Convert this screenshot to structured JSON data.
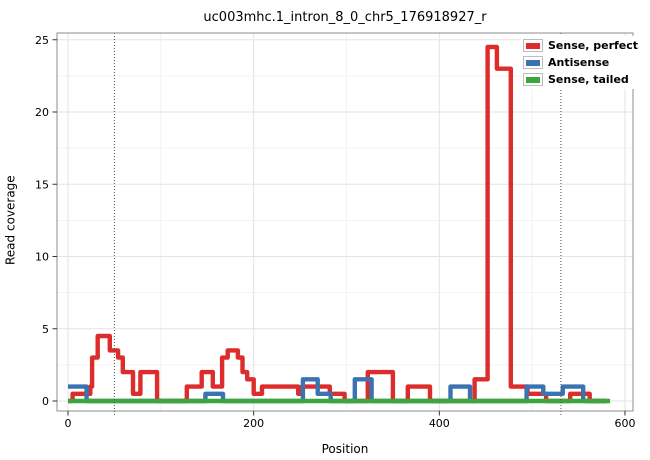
{
  "chart_data": {
    "type": "line",
    "subtype": "step-coverage",
    "title": "uc003mhc.1_intron_8_0_chr5_176918927_r",
    "xlabel": "Position",
    "ylabel": "Read coverage",
    "xlim": [
      -15,
      618
    ],
    "ylim": [
      -1,
      25.6
    ],
    "x_major_ticks": [
      0,
      200,
      400,
      600
    ],
    "x_minor_ticks": [
      100,
      300,
      500
    ],
    "y_major_ticks": [
      0,
      5,
      10,
      15,
      20,
      25
    ],
    "y_minor_ticks": [
      2.5,
      7.5,
      12.5,
      17.5,
      22.5
    ],
    "grid": "major+minor",
    "legend_position": "top-right",
    "dotted_vlines": [
      50,
      531
    ],
    "series": [
      {
        "name": "Sense, perfect",
        "color": "#DD2C2C",
        "steps": [
          [
            0,
            0
          ],
          [
            5,
            0.5
          ],
          [
            24,
            1
          ],
          [
            26,
            3
          ],
          [
            32,
            4.5
          ],
          [
            45,
            3.5
          ],
          [
            54,
            3
          ],
          [
            59,
            2
          ],
          [
            70,
            0.5
          ],
          [
            78,
            2
          ],
          [
            96,
            0
          ],
          [
            128,
            1
          ],
          [
            144,
            2
          ],
          [
            156,
            1
          ],
          [
            166,
            3
          ],
          [
            172,
            3.5
          ],
          [
            183,
            3
          ],
          [
            188,
            2
          ],
          [
            193,
            1.5
          ],
          [
            200,
            0.5
          ],
          [
            209,
            1
          ],
          [
            248,
            0.5
          ],
          [
            252,
            1
          ],
          [
            282,
            0.5
          ],
          [
            298,
            0
          ],
          [
            323,
            2
          ],
          [
            350,
            0
          ],
          [
            366,
            1
          ],
          [
            390,
            0
          ],
          [
            438,
            1.5
          ],
          [
            452,
            24.5
          ],
          [
            462,
            23
          ],
          [
            477,
            1
          ],
          [
            495,
            0.5
          ],
          [
            515,
            0
          ],
          [
            541,
            0.5
          ],
          [
            562,
            0
          ],
          [
            580,
            0
          ]
        ]
      },
      {
        "name": "Antisense",
        "color": "#3B73B0",
        "steps": [
          [
            0,
            1
          ],
          [
            20,
            0
          ],
          [
            148,
            0.5
          ],
          [
            167,
            0
          ],
          [
            253,
            1.5
          ],
          [
            269,
            0.5
          ],
          [
            283,
            0
          ],
          [
            309,
            1.5
          ],
          [
            327,
            0
          ],
          [
            412,
            1
          ],
          [
            433,
            0
          ],
          [
            494,
            1
          ],
          [
            512,
            0.5
          ],
          [
            533,
            1
          ],
          [
            555,
            0
          ],
          [
            580,
            0
          ]
        ]
      },
      {
        "name": "Sense, tailed",
        "color": "#3CA53C",
        "steps": [
          [
            0,
            0
          ],
          [
            584,
            0
          ]
        ]
      }
    ]
  },
  "colors": {
    "panel_border": "#8C8C8C",
    "grid_major": "#E3E3E3",
    "grid_minor": "#F2F2F2",
    "vline": "#4D4D4D",
    "tick": "#333333",
    "text": "#000000"
  }
}
